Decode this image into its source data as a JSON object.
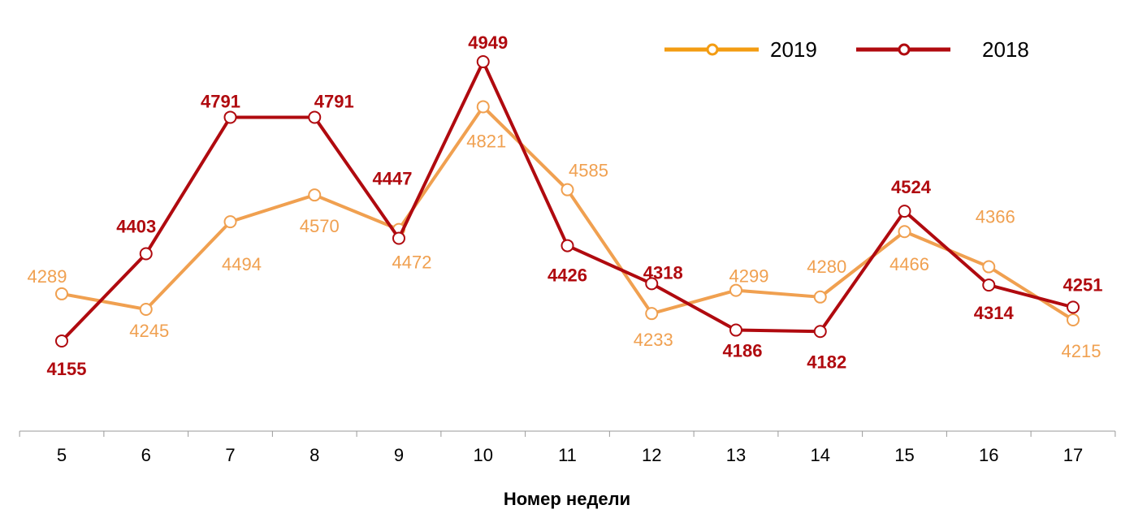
{
  "chart_data": {
    "type": "line",
    "title": "",
    "xlabel": "Номер недели",
    "ylabel": "",
    "categories": [
      "5",
      "6",
      "7",
      "8",
      "9",
      "10",
      "11",
      "12",
      "13",
      "14",
      "15",
      "16",
      "17"
    ],
    "series": [
      {
        "name": "2019",
        "color": "#F0A050",
        "legend_color": "#F39C12",
        "values": [
          4289,
          4245,
          4494,
          4570,
          4472,
          4821,
          4585,
          4233,
          4299,
          4280,
          4466,
          4366,
          4215
        ]
      },
      {
        "name": "2018",
        "color": "#B00A0F",
        "values": [
          4155,
          4403,
          4791,
          4791,
          4447,
          4949,
          4426,
          4318,
          4186,
          4182,
          4524,
          4314,
          4251
        ]
      }
    ],
    "legend_position": "top-right",
    "grid": false,
    "y_axis_visible": false,
    "data_labels": true
  },
  "legend": {
    "items": [
      {
        "label": "2019",
        "color": "#F39C12"
      },
      {
        "label": "2018",
        "color": "#B00A0F"
      }
    ]
  },
  "x_axis": {
    "title": "Номер недели"
  }
}
